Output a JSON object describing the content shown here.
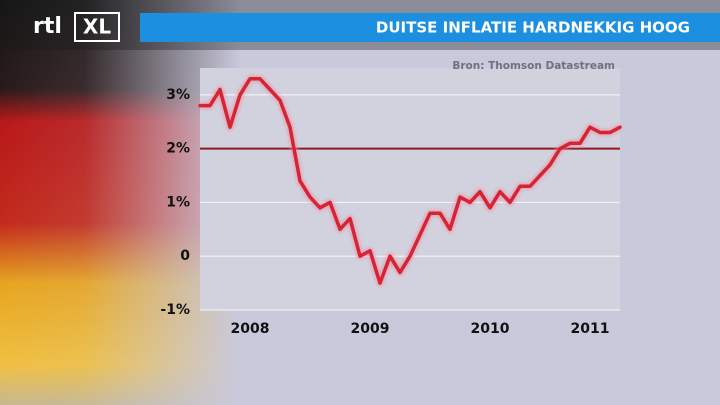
{
  "logo": {
    "left": "rtl",
    "right": "XL"
  },
  "chart_data": {
    "type": "line",
    "title": "DUITSE INFLATIE HARDNEKKIG HOOG",
    "source": "Bron: Thomson Datastream",
    "categories": [
      null,
      null,
      null,
      null,
      null,
      "2008",
      null,
      null,
      null,
      null,
      null,
      null,
      null,
      null,
      null,
      null,
      null,
      "2009",
      null,
      null,
      null,
      null,
      null,
      null,
      null,
      null,
      null,
      null,
      null,
      "2010",
      null,
      null,
      null,
      null,
      null,
      null,
      null,
      null,
      null,
      "2011",
      null,
      null,
      null
    ],
    "series": [
      {
        "color": "#d42436",
        "values": [
          2.8,
          2.8,
          3.1,
          2.4,
          3.0,
          3.3,
          3.3,
          3.1,
          2.9,
          2.4,
          1.4,
          1.1,
          0.9,
          1.0,
          0.5,
          0.7,
          0.0,
          0.1,
          -0.5,
          0.0,
          -0.3,
          0.0,
          0.4,
          0.8,
          0.8,
          0.5,
          1.1,
          1.0,
          1.2,
          0.9,
          1.2,
          1.0,
          1.3,
          1.3,
          1.5,
          1.7,
          2.0,
          2.1,
          2.1,
          2.4,
          2.3,
          2.3,
          2.4
        ]
      }
    ],
    "reference_line": {
      "value": 2,
      "color": "#8e1a22"
    },
    "ylim": [
      -1,
      3.5
    ],
    "yticks": [
      {
        "value": -1,
        "label": "-1%"
      },
      0,
      {
        "value": 1,
        "label": "1%"
      },
      {
        "value": 2,
        "label": "2%"
      },
      {
        "value": 3,
        "label": "3%"
      }
    ],
    "grid": true
  }
}
